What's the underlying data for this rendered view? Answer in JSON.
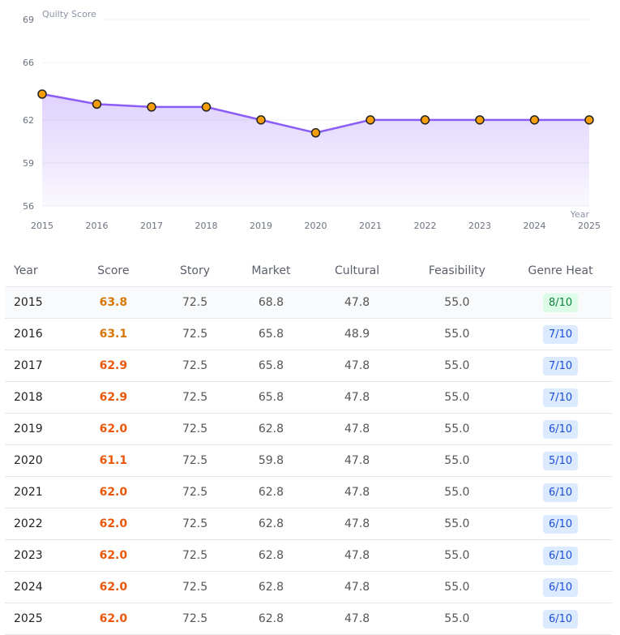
{
  "chart_data": {
    "type": "line",
    "title": "Quilty Score",
    "xlabel": "Year",
    "ylabel": "",
    "ylim": [
      56,
      69
    ],
    "yticks": [
      56,
      59,
      62,
      66,
      69
    ],
    "x": [
      "2015",
      "2016",
      "2017",
      "2018",
      "2019",
      "2020",
      "2021",
      "2022",
      "2023",
      "2024",
      "2025"
    ],
    "values": [
      63.8,
      63.1,
      62.9,
      62.9,
      62.0,
      61.1,
      62.0,
      62.0,
      62.0,
      62.0,
      62.0
    ],
    "grid": true,
    "colors": {
      "line": "#8b5cf6",
      "marker": "#f59e0b"
    }
  },
  "table": {
    "headers": [
      "Year",
      "Score",
      "Story",
      "Market",
      "Cultural",
      "Feasibility",
      "Genre Heat"
    ],
    "rows": [
      [
        "2015",
        "63.8",
        "72.5",
        "68.8",
        "47.8",
        "55.0",
        "8/10"
      ],
      [
        "2016",
        "63.1",
        "72.5",
        "65.8",
        "48.9",
        "55.0",
        "7/10"
      ],
      [
        "2017",
        "62.9",
        "72.5",
        "65.8",
        "47.8",
        "55.0",
        "7/10"
      ],
      [
        "2018",
        "62.9",
        "72.5",
        "65.8",
        "47.8",
        "55.0",
        "7/10"
      ],
      [
        "2019",
        "62.0",
        "72.5",
        "62.8",
        "47.8",
        "55.0",
        "6/10"
      ],
      [
        "2020",
        "61.1",
        "72.5",
        "59.8",
        "47.8",
        "55.0",
        "5/10"
      ],
      [
        "2021",
        "62.0",
        "72.5",
        "62.8",
        "47.8",
        "55.0",
        "6/10"
      ],
      [
        "2022",
        "62.0",
        "72.5",
        "62.8",
        "47.8",
        "55.0",
        "6/10"
      ],
      [
        "2023",
        "62.0",
        "72.5",
        "62.8",
        "47.8",
        "55.0",
        "6/10"
      ],
      [
        "2024",
        "62.0",
        "72.5",
        "62.8",
        "47.8",
        "55.0",
        "6/10"
      ],
      [
        "2025",
        "62.0",
        "72.5",
        "62.8",
        "47.8",
        "55.0",
        "6/10"
      ]
    ]
  }
}
